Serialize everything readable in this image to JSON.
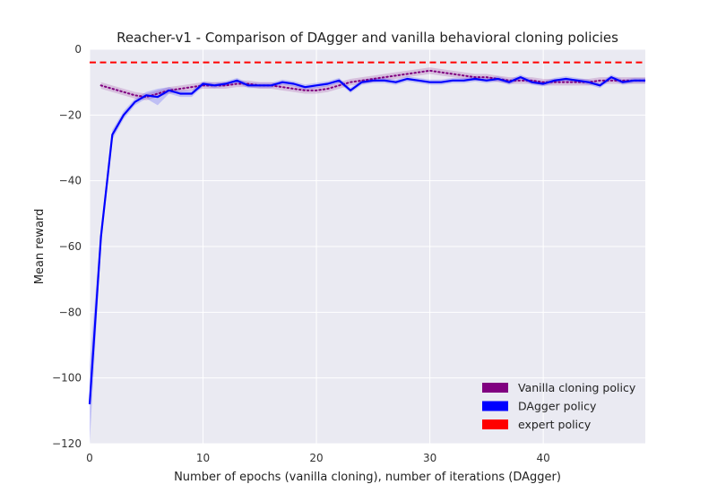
{
  "chart_data": {
    "type": "line",
    "title": "Reacher-v1 - Comparison of DAgger and vanilla behavioral cloning policies",
    "xlabel": "Number of epochs (vanilla cloning), number of iterations (DAgger)",
    "ylabel": "Mean reward",
    "xlim": [
      0,
      49
    ],
    "ylim": [
      -120,
      0
    ],
    "xticks": [
      0,
      10,
      20,
      30,
      40
    ],
    "yticks": [
      0,
      -20,
      -40,
      -60,
      -80,
      -100,
      -120
    ],
    "grid": true,
    "legend_position": "bottom-right",
    "series": [
      {
        "name": "Vanilla cloning policy",
        "color": "#800080",
        "style": "dotted",
        "x": [
          1,
          2,
          3,
          4,
          5,
          6,
          7,
          8,
          9,
          10,
          11,
          12,
          13,
          14,
          15,
          16,
          17,
          18,
          19,
          20,
          21,
          22,
          23,
          24,
          25,
          26,
          27,
          28,
          29,
          30,
          31,
          32,
          33,
          34,
          35,
          36,
          37,
          38,
          39,
          40,
          41,
          42,
          43,
          44,
          45,
          46,
          47,
          48,
          49
        ],
        "y": [
          -11,
          -12,
          -13,
          -14,
          -14.5,
          -13.5,
          -12.5,
          -12,
          -11.5,
          -11,
          -11,
          -11,
          -10.5,
          -10.5,
          -11,
          -11,
          -11.5,
          -12,
          -12.5,
          -12.5,
          -12,
          -11,
          -10,
          -9.5,
          -9,
          -8.5,
          -8,
          -7.5,
          -7,
          -6.5,
          -7,
          -7.5,
          -8,
          -8.5,
          -8.5,
          -9,
          -9.5,
          -9.5,
          -9.5,
          -10,
          -10,
          -10,
          -10,
          -10,
          -9.5,
          -9.5,
          -9.5,
          -9.5,
          -9.5
        ],
        "spread": 1.0
      },
      {
        "name": "DAgger policy",
        "color": "#0000ff",
        "style": "solid",
        "x": [
          0,
          1,
          2,
          3,
          4,
          5,
          6,
          7,
          8,
          9,
          10,
          11,
          12,
          13,
          14,
          15,
          16,
          17,
          18,
          19,
          20,
          21,
          22,
          23,
          24,
          25,
          26,
          27,
          28,
          29,
          30,
          31,
          32,
          33,
          34,
          35,
          36,
          37,
          38,
          39,
          40,
          41,
          42,
          43,
          44,
          45,
          46,
          47,
          48,
          49
        ],
        "y": [
          -108,
          -57,
          -26,
          -20,
          -16,
          -14,
          -14.5,
          -12.5,
          -13.5,
          -13.5,
          -10.5,
          -11,
          -10.5,
          -9.5,
          -11,
          -11,
          -11,
          -10,
          -10.5,
          -11.5,
          -11,
          -10.5,
          -9.5,
          -12.5,
          -10,
          -9.5,
          -9.5,
          -10,
          -9,
          -9.5,
          -10,
          -10,
          -9.5,
          -9.5,
          -9,
          -9.5,
          -9,
          -10,
          -8.5,
          -10,
          -10.5,
          -9.5,
          -9,
          -9.5,
          -10,
          -11,
          -8.5,
          -10,
          -9.5,
          -9.5
        ],
        "spread": [
          12,
          3,
          1.5,
          1.2,
          1,
          1,
          2.5,
          1,
          1,
          1,
          0.8,
          0.8,
          0.8,
          0.8,
          0.8,
          0.8,
          0.8,
          0.8,
          0.8,
          0.8,
          0.8,
          0.8,
          0.8,
          0.8,
          0.8,
          0.8,
          0.8,
          0.8,
          0.8,
          0.8,
          0.8,
          0.8,
          0.8,
          0.8,
          0.8,
          0.8,
          0.8,
          0.8,
          0.8,
          0.8,
          0.8,
          0.8,
          0.8,
          0.8,
          0.8,
          0.8,
          0.8,
          0.8,
          0.8,
          0.8
        ]
      },
      {
        "name": "expert policy",
        "color": "#ff0000",
        "style": "dashed",
        "x": [
          0,
          49
        ],
        "y": [
          -4,
          -4
        ]
      }
    ]
  }
}
